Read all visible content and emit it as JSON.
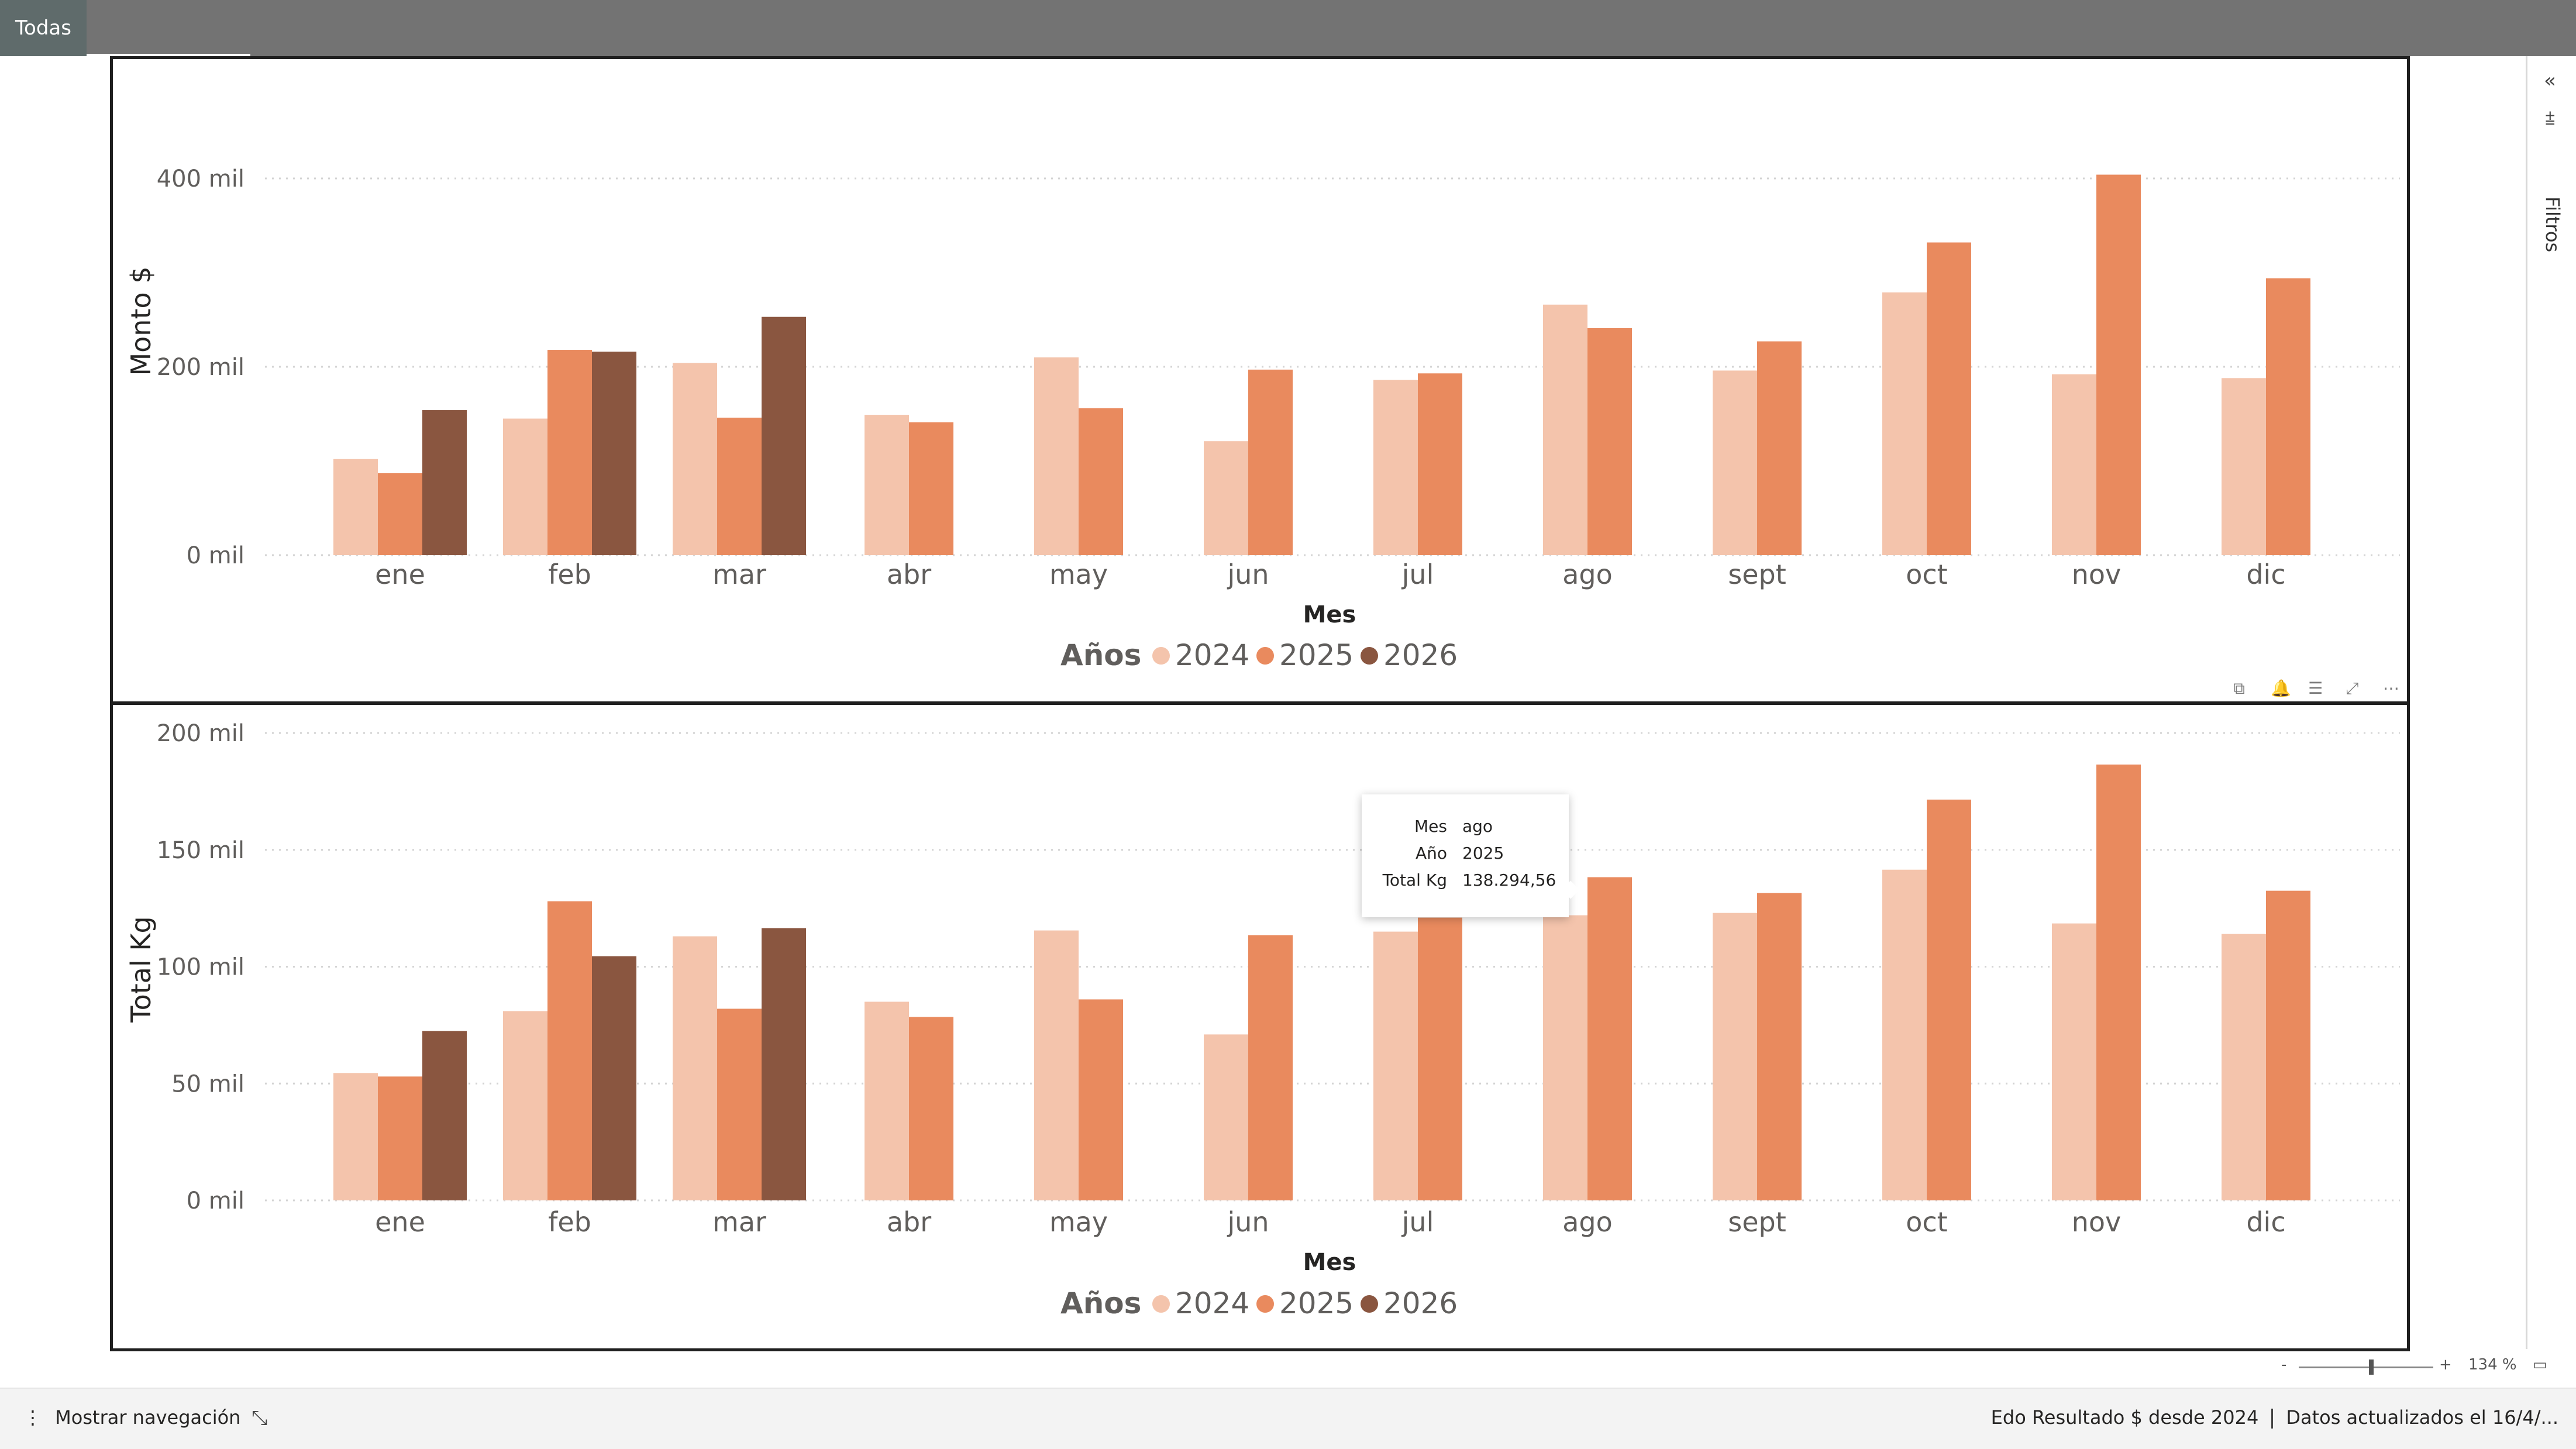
{
  "tab": {
    "label": "Todas"
  },
  "chart_data": [
    {
      "type": "bar",
      "categories": [
        "ene",
        "feb",
        "mar",
        "abr",
        "may",
        "jun",
        "jul",
        "ago",
        "sept",
        "oct",
        "nov",
        "dic"
      ],
      "series": [
        {
          "name": "2024",
          "color": "#F4C4AC",
          "values": [
            102000,
            145000,
            204000,
            149000,
            210000,
            121000,
            186000,
            266000,
            196000,
            279000,
            192000,
            188000
          ]
        },
        {
          "name": "2025",
          "color": "#E98A5E",
          "values": [
            87000,
            218000,
            146000,
            141000,
            156000,
            197000,
            193000,
            241000,
            227000,
            332000,
            404000,
            294000
          ]
        },
        {
          "name": "2026",
          "color": "#8A5640",
          "values": [
            154000,
            216000,
            253000,
            null,
            null,
            null,
            null,
            null,
            null,
            null,
            null,
            null
          ]
        }
      ],
      "ylim": [
        0,
        400000
      ],
      "yticks": [
        0,
        200000,
        400000
      ],
      "ytick_labels": [
        "0 mil",
        "200 mil",
        "400 mil"
      ],
      "xlabel": "Mes",
      "ylabel": "Monto $",
      "legend_title": "Años",
      "legend_position": "bottom-center",
      "grid": true
    },
    {
      "type": "bar",
      "categories": [
        "ene",
        "feb",
        "mar",
        "abr",
        "may",
        "jun",
        "jul",
        "ago",
        "sept",
        "oct",
        "nov",
        "dic"
      ],
      "series": [
        {
          "name": "2024",
          "color": "#F4C4AC",
          "values": [
            54500,
            81000,
            113000,
            85000,
            115500,
            71000,
            115000,
            122000,
            123000,
            141500,
            118500,
            114000
          ]
        },
        {
          "name": "2025",
          "color": "#E98A5E",
          "values": [
            53000,
            128000,
            82000,
            78500,
            86000,
            113500,
            121000,
            138294.56,
            131500,
            171500,
            186500,
            132500
          ]
        },
        {
          "name": "2026",
          "color": "#8A5640",
          "values": [
            72500,
            104500,
            116500,
            null,
            null,
            null,
            null,
            null,
            null,
            null,
            null,
            null
          ]
        }
      ],
      "ylim": [
        0,
        200000
      ],
      "yticks": [
        0,
        50000,
        100000,
        150000,
        200000
      ],
      "ytick_labels": [
        "0 mil",
        "50 mil",
        "100 mil",
        "150 mil",
        "200 mil"
      ],
      "xlabel": "Mes",
      "ylabel": "Total Kg",
      "legend_title": "Años",
      "legend_position": "bottom-center",
      "grid": true
    }
  ],
  "tooltip": {
    "rows": [
      {
        "key": "Mes",
        "value": "ago"
      },
      {
        "key": "Año",
        "value": "2025"
      },
      {
        "key": "Total Kg",
        "value": "138.294,56"
      }
    ]
  },
  "visual_header_icons": [
    "copy-icon",
    "bell-icon",
    "filter-icon",
    "focus-mode-icon",
    "more-options-icon"
  ],
  "filters_pane": {
    "label": "Filtros"
  },
  "zoom": {
    "minus": "-",
    "plus": "+",
    "value": "134 %"
  },
  "bottom": {
    "nav_label": "Mostrar navegación",
    "page_name": "Edo Resultado $ desde 2024",
    "data_status": "Datos actualizados el 16/4/..."
  }
}
